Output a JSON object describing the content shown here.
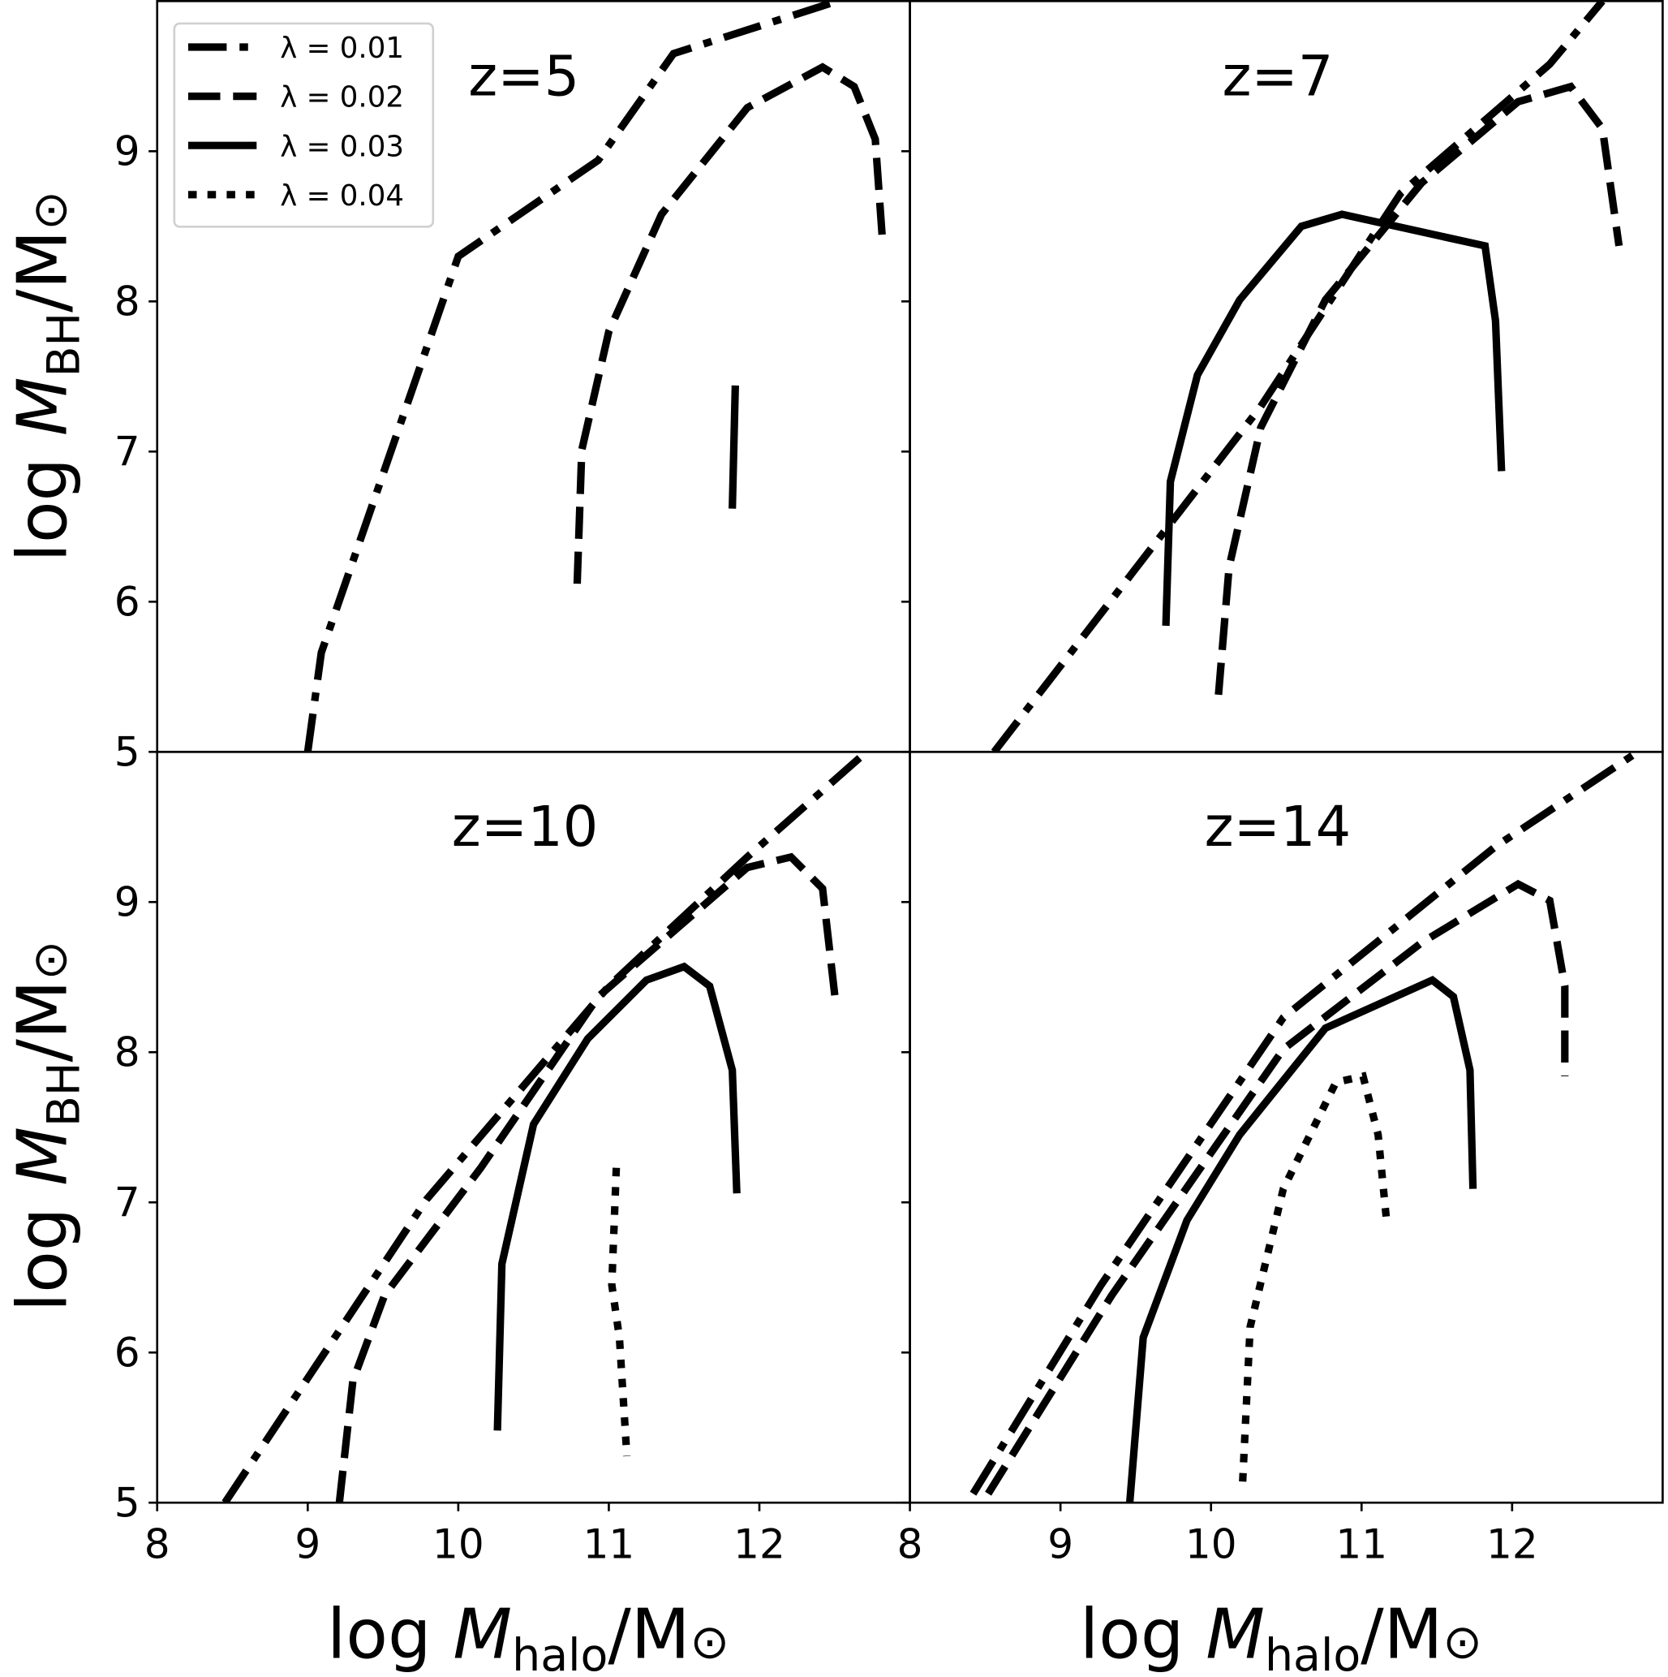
{
  "chart_data": {
    "type": "line",
    "xlabel": {
      "prefix": "log ",
      "var": "M",
      "sub": "halo",
      "suffix": "/M",
      "sun": "⊙"
    },
    "ylabel": {
      "prefix": "log ",
      "var": "M",
      "sub": "BH",
      "suffix": "/M",
      "sun": "⊙"
    },
    "xlim": [
      8,
      13
    ],
    "ylim": [
      5,
      10
    ],
    "xticks": [
      "8",
      "9",
      "10",
      "11",
      "12"
    ],
    "yticks": [
      "5",
      "6",
      "7",
      "8",
      "9"
    ],
    "legend": {
      "placement": "upper-left of first panel",
      "entries": [
        {
          "label": "λ = 0.01",
          "style": "dashdot"
        },
        {
          "label": "λ = 0.02",
          "style": "dashed"
        },
        {
          "label": "λ = 0.03",
          "style": "solid"
        },
        {
          "label": "λ = 0.04",
          "style": "dotted"
        }
      ]
    },
    "panels": [
      {
        "title": "z=5",
        "series": [
          {
            "name": "λ = 0.01",
            "style": "dashdot",
            "x": [
              9.0,
              9.09,
              10.0,
              10.93,
              11.43,
              12.52
            ],
            "y": [
              5.0,
              5.66,
              8.3,
              8.94,
              9.65,
              10.0
            ]
          },
          {
            "name": "λ = 0.02",
            "style": "dashed",
            "x": [
              10.79,
              10.82,
              11.0,
              11.35,
              11.92,
              12.42,
              12.63,
              12.77,
              12.82
            ],
            "y": [
              6.12,
              7.01,
              7.8,
              8.58,
              9.29,
              9.56,
              9.43,
              9.08,
              8.37
            ]
          },
          {
            "name": "λ = 0.03",
            "style": "solid",
            "x": [
              11.84,
              11.82
            ],
            "y": [
              7.44,
              6.62
            ]
          }
        ]
      },
      {
        "title": "z=7",
        "series": [
          {
            "name": "λ = 0.01",
            "style": "dashdot",
            "x": [
              8.56,
              10.33,
              11.26,
              12.25,
              12.6
            ],
            "y": [
              5.0,
              7.3,
              8.72,
              9.58,
              10.0
            ]
          },
          {
            "name": "λ = 0.02",
            "style": "dashed",
            "x": [
              10.05,
              10.12,
              10.33,
              10.76,
              11.4,
              12.04,
              12.39,
              12.6,
              12.71
            ],
            "y": [
              5.38,
              6.23,
              7.16,
              8.01,
              8.79,
              9.33,
              9.43,
              9.15,
              8.37
            ]
          },
          {
            "name": "λ = 0.03",
            "style": "solid",
            "x": [
              9.7,
              9.73,
              9.91,
              10.19,
              10.6,
              10.87,
              11.82,
              11.89,
              11.93
            ],
            "y": [
              5.84,
              6.8,
              7.51,
              8.01,
              8.5,
              8.58,
              8.37,
              7.87,
              6.87
            ]
          }
        ]
      },
      {
        "title": "z=10",
        "series": [
          {
            "name": "λ = 0.01",
            "style": "dashdot",
            "x": [
              8.45,
              9.79,
              11.0,
              11.92,
              12.7
            ],
            "y": [
              5.0,
              7.02,
              8.44,
              9.3,
              9.99
            ]
          },
          {
            "name": "λ = 0.02",
            "style": "dashed",
            "x": [
              9.21,
              9.3,
              9.51,
              10.15,
              10.93,
              11.92,
              12.21,
              12.42,
              12.51
            ],
            "y": [
              5.0,
              5.81,
              6.38,
              7.23,
              8.37,
              9.23,
              9.3,
              9.09,
              8.3
            ]
          },
          {
            "name": "λ = 0.03",
            "style": "solid",
            "x": [
              10.26,
              10.29,
              10.5,
              10.86,
              11.25,
              11.5,
              11.67,
              11.82,
              11.85
            ],
            "y": [
              5.48,
              6.59,
              7.52,
              8.09,
              8.48,
              8.57,
              8.44,
              7.88,
              7.06
            ]
          },
          {
            "name": "λ = 0.04",
            "style": "dotted",
            "x": [
              11.05,
              11.02,
              11.07,
              11.12
            ],
            "y": [
              7.23,
              6.45,
              6.1,
              5.31
            ]
          }
        ]
      },
      {
        "title": "z=14",
        "series": [
          {
            "name": "λ = 0.01",
            "style": "dashdot",
            "x": [
              8.42,
              9.27,
              10.48,
              11.89,
              12.82
            ],
            "y": [
              5.06,
              6.45,
              8.23,
              9.37,
              9.99
            ]
          },
          {
            "name": "λ = 0.02",
            "style": "dashed",
            "x": [
              8.52,
              9.34,
              10.48,
              11.4,
              12.04,
              12.25,
              12.35,
              12.35
            ],
            "y": [
              5.06,
              6.38,
              8.02,
              8.73,
              9.12,
              9.01,
              8.44,
              7.84
            ]
          },
          {
            "name": "λ = 0.03",
            "style": "solid",
            "x": [
              9.46,
              9.55,
              9.84,
              10.19,
              10.76,
              11.47,
              11.61,
              11.72,
              11.74
            ],
            "y": [
              5.0,
              6.1,
              6.88,
              7.45,
              8.16,
              8.48,
              8.37,
              7.88,
              7.09
            ]
          },
          {
            "name": "λ = 0.04",
            "style": "dotted",
            "x": [
              10.21,
              10.26,
              10.48,
              10.83,
              11.01,
              11.11,
              11.17
            ],
            "y": [
              5.14,
              6.17,
              7.09,
              7.8,
              7.84,
              7.45,
              6.84
            ]
          }
        ]
      }
    ]
  }
}
